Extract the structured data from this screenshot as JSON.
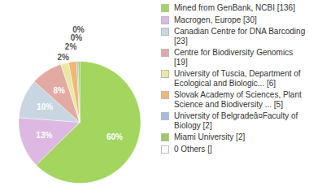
{
  "chart_data": {
    "type": "pie",
    "categories": [
      "Mined from GenBank, NCBI [136]",
      "Macrogen, Europe [30]",
      "Canadian Centre for DNA Barcoding [23]",
      "Centre for Biodiversity Genomics [19]",
      "University of Tuscia, Department of Ecological and Biologic... [6]",
      "Slovak Academy of Sciences, Plant Science and Biodiversity ... [5]",
      "University of Belgradeâ¤Faculty of Biology [2]",
      "Miami University [2]",
      "0 Others []"
    ],
    "values": [
      60,
      13,
      10,
      8,
      2,
      2,
      0.4,
      0.4,
      0
    ],
    "value_labels": [
      "60%",
      "13%",
      "10%",
      "8%",
      "2%",
      "2%",
      "0%",
      "0%",
      null
    ],
    "colors": [
      "#a3d55f",
      "#dcb8e2",
      "#c8d6e2",
      "#e2aaa2",
      "#e8e8a4",
      "#f2b675",
      "#a6bce2",
      "#9ccb5e",
      "#ffffff"
    ],
    "data_labels": true,
    "tick_labels": false
  }
}
